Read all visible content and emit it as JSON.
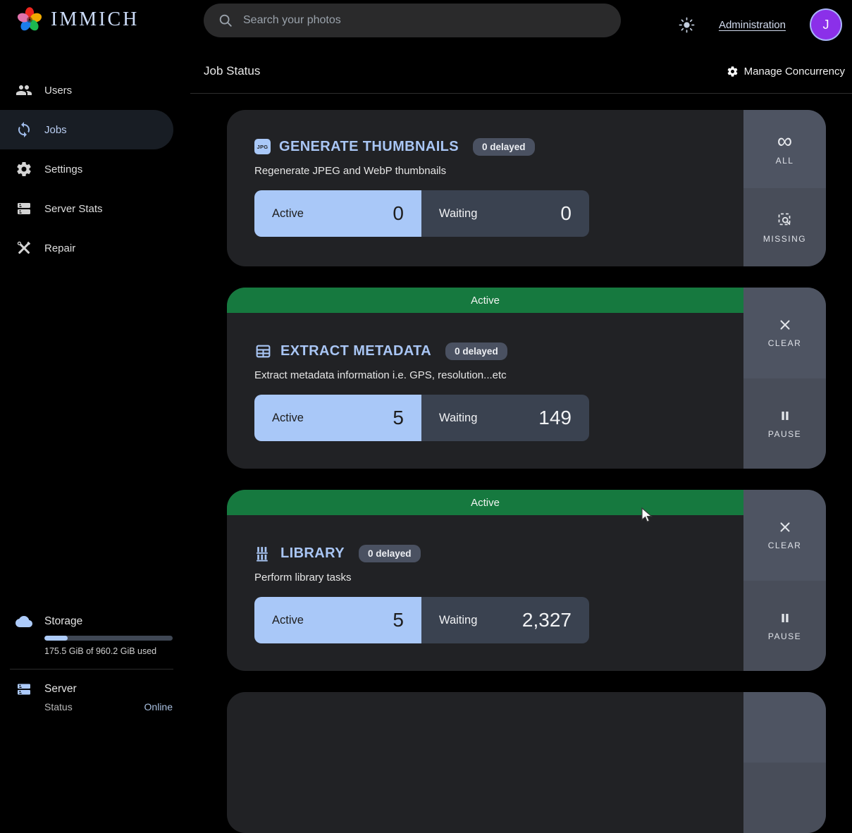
{
  "topbar": {
    "logo_text": "IMMICH",
    "search_placeholder": "Search your photos",
    "admin_link": "Administration",
    "avatar_initial": "J"
  },
  "sidebar": {
    "items": [
      {
        "label": "Users"
      },
      {
        "label": "Jobs"
      },
      {
        "label": "Settings"
      },
      {
        "label": "Server Stats"
      },
      {
        "label": "Repair"
      }
    ],
    "storage": {
      "title": "Storage",
      "usage_text": "175.5 GiB of 960.2 GiB used",
      "percent_used": 18
    },
    "server": {
      "title": "Server",
      "status_label": "Status",
      "status_value": "Online"
    }
  },
  "header": {
    "title": "Job Status",
    "action": "Manage Concurrency"
  },
  "jobs": [
    {
      "name": "GENERATE THUMBNAILS",
      "icon": "jpg-icon",
      "icon_text": "JPG",
      "badge": "0 delayed",
      "description": "Regenerate JPEG and WebP thumbnails",
      "banner": "",
      "stats": [
        {
          "label": "Active",
          "value": "0"
        },
        {
          "label": "Waiting",
          "value": "0"
        }
      ],
      "buttons": [
        {
          "label": "ALL",
          "icon": "infinity-icon"
        },
        {
          "label": "MISSING",
          "icon": "missing-search-icon"
        }
      ]
    },
    {
      "name": "EXTRACT METADATA",
      "icon": "table-icon",
      "badge": "0 delayed",
      "description": "Extract metadata information i.e. GPS, resolution...etc",
      "banner": "Active",
      "stats": [
        {
          "label": "Active",
          "value": "5"
        },
        {
          "label": "Waiting",
          "value": "149"
        }
      ],
      "buttons": [
        {
          "label": "CLEAR",
          "icon": "close-icon"
        },
        {
          "label": "PAUSE",
          "icon": "pause-icon"
        }
      ]
    },
    {
      "name": "LIBRARY",
      "icon": "library-icon",
      "badge": "0 delayed",
      "description": "Perform library tasks",
      "banner": "Active",
      "stats": [
        {
          "label": "Active",
          "value": "5"
        },
        {
          "label": "Waiting",
          "value": "2,327"
        }
      ],
      "buttons": [
        {
          "label": "CLEAR",
          "icon": "close-icon"
        },
        {
          "label": "PAUSE",
          "icon": "pause-icon"
        }
      ]
    }
  ],
  "colors": {
    "accent_blue": "#adcbfa",
    "banner_green": "#16793f",
    "card_bg": "#212225",
    "waiting_slate": "#3a4250",
    "avatar_purple": "#8b30e9"
  },
  "infinity_glyph": "∞"
}
